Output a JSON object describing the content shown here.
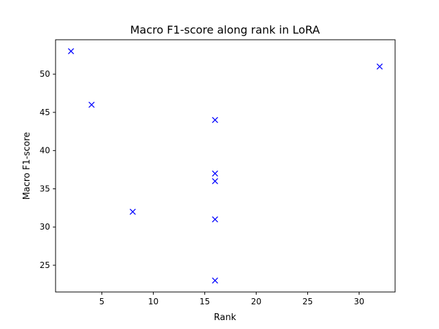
{
  "chart_data": {
    "type": "scatter",
    "title": "Macro F1-score along rank in LoRA",
    "xlabel": "Rank",
    "ylabel": "Macro F1-score",
    "xlim": [
      0.5,
      33.5
    ],
    "ylim": [
      21.5,
      54.5
    ],
    "xticks": [
      5,
      10,
      15,
      20,
      25,
      30
    ],
    "yticks": [
      25,
      30,
      35,
      40,
      45,
      50
    ],
    "grid": false,
    "marker": "x",
    "marker_color": "#0000ff",
    "series": [
      {
        "points": [
          {
            "x": 2,
            "y": 53
          },
          {
            "x": 4,
            "y": 46
          },
          {
            "x": 8,
            "y": 32
          },
          {
            "x": 16,
            "y": 44
          },
          {
            "x": 16,
            "y": 37
          },
          {
            "x": 16,
            "y": 36
          },
          {
            "x": 16,
            "y": 31
          },
          {
            "x": 16,
            "y": 23
          },
          {
            "x": 32,
            "y": 51
          }
        ]
      }
    ]
  }
}
